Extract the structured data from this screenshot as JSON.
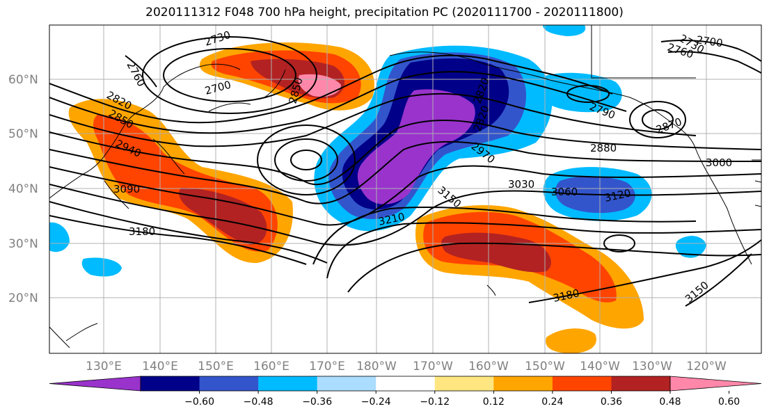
{
  "title": "2020111312 F048 700 hPa height, precipitation PC (2020111700 - 2020111800)",
  "latitudes": [
    "60°N",
    "50°N",
    "40°N",
    "30°N",
    "20°N"
  ],
  "longitudes": [
    "130°E",
    "140°E",
    "150°E",
    "160°E",
    "170°E",
    "180°W",
    "170°W",
    "160°W",
    "150°W",
    "140°W",
    "130°W",
    "120°W"
  ],
  "colorbar": {
    "colors": [
      "#9933cc",
      "#000088",
      "#3355cc",
      "#00bbff",
      "#aaddff",
      "#ffffff",
      "#ffe680",
      "#ffa500",
      "#ff4400",
      "#b22222",
      "#ff88aa"
    ],
    "ticks": [
      "−0.60",
      "−0.48",
      "−0.36",
      "−0.24",
      "−0.12",
      "0.12",
      "0.24",
      "0.36",
      "0.48",
      "0.60"
    ]
  },
  "contour_labels": [
    "2730",
    "2760",
    "2700",
    "2820",
    "2850",
    "2940",
    "3090",
    "3180",
    "2790",
    "2880",
    "3000",
    "2970",
    "3030",
    "3060",
    "3120",
    "3150",
    "3210",
    "3180",
    "3150",
    "2700",
    "2730",
    "2760",
    "2820",
    "2850",
    "2870",
    "2820"
  ]
}
